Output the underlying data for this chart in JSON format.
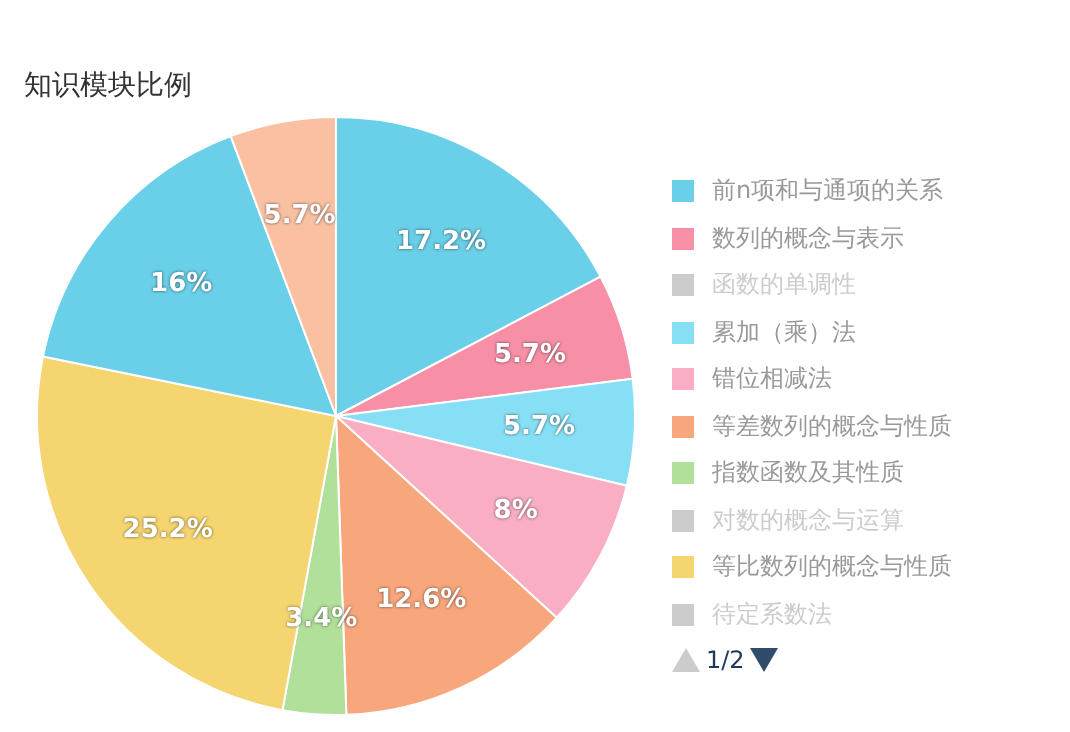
{
  "chart_data": {
    "type": "pie",
    "title": "知识模块比例",
    "categories": [
      "前n项和与通项的关系",
      "数列的概念与表示",
      "函数的单调性",
      "累加（乘）法",
      "错位相减法",
      "等差数列的概念与性质",
      "指数函数及其性质",
      "对数的概念与运算",
      "等比数列的概念与性质",
      "待定系数法",
      null,
      null
    ],
    "values": [
      17.2,
      5.7,
      null,
      5.7,
      8,
      12.6,
      3.4,
      null,
      25.2,
      null,
      16,
      5.7
    ],
    "colors": [
      "#6acfe8",
      "#f78fa7",
      "#cccccc",
      "#87dff5",
      "#f9aec3",
      "#f8a67c",
      "#b1e09a",
      "#cccccc",
      "#f5d56f",
      "#cccccc",
      "#6acfe8",
      "#f9c0a2"
    ],
    "value_labels": [
      "17.2%",
      "5.7%",
      null,
      "5.7%",
      "8%",
      "12.6%",
      "3.4%",
      null,
      "25.2%",
      null,
      "16%",
      "5.7%"
    ],
    "legend": "right",
    "annotations": [
      "1/2"
    ]
  }
}
